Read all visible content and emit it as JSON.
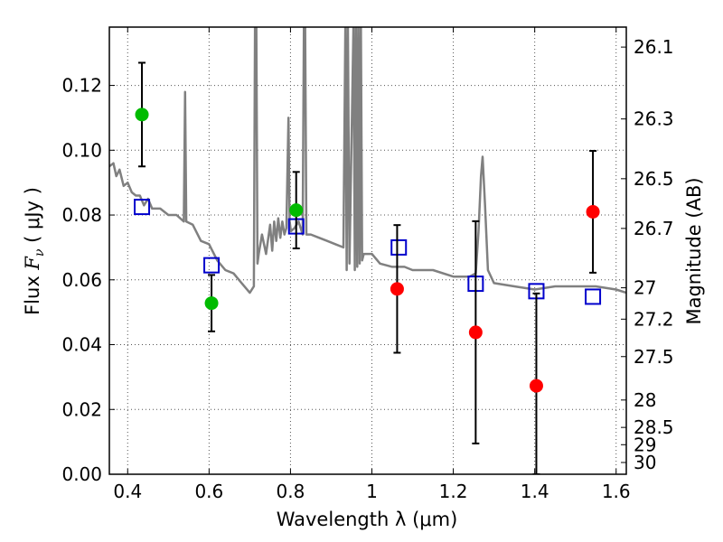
{
  "chart_data": {
    "type": "scatter",
    "xlabel": "Wavelength  λ (μm)",
    "ylabel": "Flux  F_ν  ( μJy )",
    "ylabel_parts": {
      "prefix": "Flux ",
      "symbol": "F",
      "subscript": "ν",
      "unit": " ( μJy )"
    },
    "y2label": "Magnitude (AB)",
    "xlim": [
      0.355,
      1.625
    ],
    "ylim": [
      0.0,
      0.138
    ],
    "grid": true,
    "x_ticks": [
      0.4,
      0.6,
      0.8,
      1.0,
      1.2,
      1.4,
      1.6
    ],
    "x_tick_labels": [
      "0.4",
      "0.6",
      "0.8",
      "1",
      "1.2",
      "1.4",
      "1.6"
    ],
    "y_ticks": [
      0.0,
      0.02,
      0.04,
      0.06,
      0.08,
      0.1,
      0.12
    ],
    "y_tick_labels": [
      "0.00",
      "0.02",
      "0.04",
      "0.06",
      "0.08",
      "0.10",
      "0.12"
    ],
    "y2_ticks": [
      {
        "label": "26.1",
        "value": 26.1
      },
      {
        "label": "26.3",
        "value": 26.3
      },
      {
        "label": "26.5",
        "value": 26.5
      },
      {
        "label": "26.7",
        "value": 26.7
      },
      {
        "label": "27",
        "value": 27.0
      },
      {
        "label": "27.2",
        "value": 27.2
      },
      {
        "label": "27.5",
        "value": 27.5
      },
      {
        "label": "28",
        "value": 28.0
      },
      {
        "label": "28.5",
        "value": 28.5
      },
      {
        "label": "29",
        "value": 29.0
      },
      {
        "label": "30",
        "value": 30.0
      }
    ],
    "colors": {
      "green_points": "#00bb00",
      "red_points": "#ff0000",
      "model_squares": "#0000cc",
      "spectrum": "#808080",
      "error_bars": "#000000",
      "grid": "#555555"
    },
    "green_points": [
      {
        "x": 0.435,
        "y": 0.111,
        "err": 0.016
      },
      {
        "x": 0.606,
        "y": 0.0528,
        "err": 0.0087
      },
      {
        "x": 0.814,
        "y": 0.0815,
        "err": 0.0118
      }
    ],
    "red_points": [
      {
        "x": 1.062,
        "y": 0.0572,
        "err": 0.0197
      },
      {
        "x": 1.255,
        "y": 0.0438,
        "err": 0.0343
      },
      {
        "x": 1.404,
        "y": 0.0273,
        "err": 0.0285
      },
      {
        "x": 1.543,
        "y": 0.081,
        "err": 0.0188
      }
    ],
    "model_squares": [
      {
        "x": 0.435,
        "y": 0.0825
      },
      {
        "x": 0.606,
        "y": 0.0645
      },
      {
        "x": 0.814,
        "y": 0.0765
      },
      {
        "x": 1.066,
        "y": 0.07
      },
      {
        "x": 1.255,
        "y": 0.0588
      },
      {
        "x": 1.404,
        "y": 0.0565
      },
      {
        "x": 1.543,
        "y": 0.0548
      }
    ],
    "spectrum": {
      "x": [
        0.355,
        0.365,
        0.372,
        0.38,
        0.39,
        0.4,
        0.41,
        0.42,
        0.43,
        0.44,
        0.45,
        0.46,
        0.48,
        0.5,
        0.52,
        0.538,
        0.541,
        0.544,
        0.56,
        0.58,
        0.6,
        0.62,
        0.64,
        0.66,
        0.68,
        0.7,
        0.71,
        0.713,
        0.716,
        0.719,
        0.722,
        0.73,
        0.74,
        0.75,
        0.755,
        0.76,
        0.765,
        0.77,
        0.775,
        0.78,
        0.785,
        0.79,
        0.795,
        0.798,
        0.801,
        0.81,
        0.82,
        0.83,
        0.833,
        0.836,
        0.839,
        0.85,
        0.87,
        0.89,
        0.91,
        0.93,
        0.935,
        0.938,
        0.941,
        0.945,
        0.955,
        0.958,
        0.961,
        0.964,
        0.967,
        0.97,
        0.973,
        0.976,
        0.98,
        1.0,
        1.02,
        1.05,
        1.08,
        1.1,
        1.15,
        1.2,
        1.24,
        1.255,
        1.262,
        1.268,
        1.272,
        1.278,
        1.285,
        1.3,
        1.35,
        1.4,
        1.45,
        1.5,
        1.55,
        1.6,
        1.625
      ],
      "y": [
        0.095,
        0.096,
        0.092,
        0.094,
        0.089,
        0.09,
        0.087,
        0.086,
        0.086,
        0.083,
        0.085,
        0.082,
        0.082,
        0.08,
        0.08,
        0.078,
        0.118,
        0.078,
        0.077,
        0.072,
        0.071,
        0.066,
        0.063,
        0.062,
        0.059,
        0.056,
        0.058,
        0.14,
        0.14,
        0.065,
        0.068,
        0.074,
        0.068,
        0.077,
        0.069,
        0.078,
        0.072,
        0.079,
        0.073,
        0.078,
        0.074,
        0.076,
        0.11,
        0.078,
        0.075,
        0.076,
        0.078,
        0.074,
        0.14,
        0.14,
        0.074,
        0.074,
        0.073,
        0.072,
        0.071,
        0.07,
        0.14,
        0.063,
        0.14,
        0.065,
        0.14,
        0.063,
        0.14,
        0.064,
        0.14,
        0.065,
        0.14,
        0.066,
        0.068,
        0.068,
        0.065,
        0.064,
        0.064,
        0.063,
        0.063,
        0.061,
        0.061,
        0.062,
        0.075,
        0.092,
        0.098,
        0.083,
        0.063,
        0.059,
        0.058,
        0.057,
        0.058,
        0.058,
        0.058,
        0.057,
        0.056
      ]
    }
  }
}
